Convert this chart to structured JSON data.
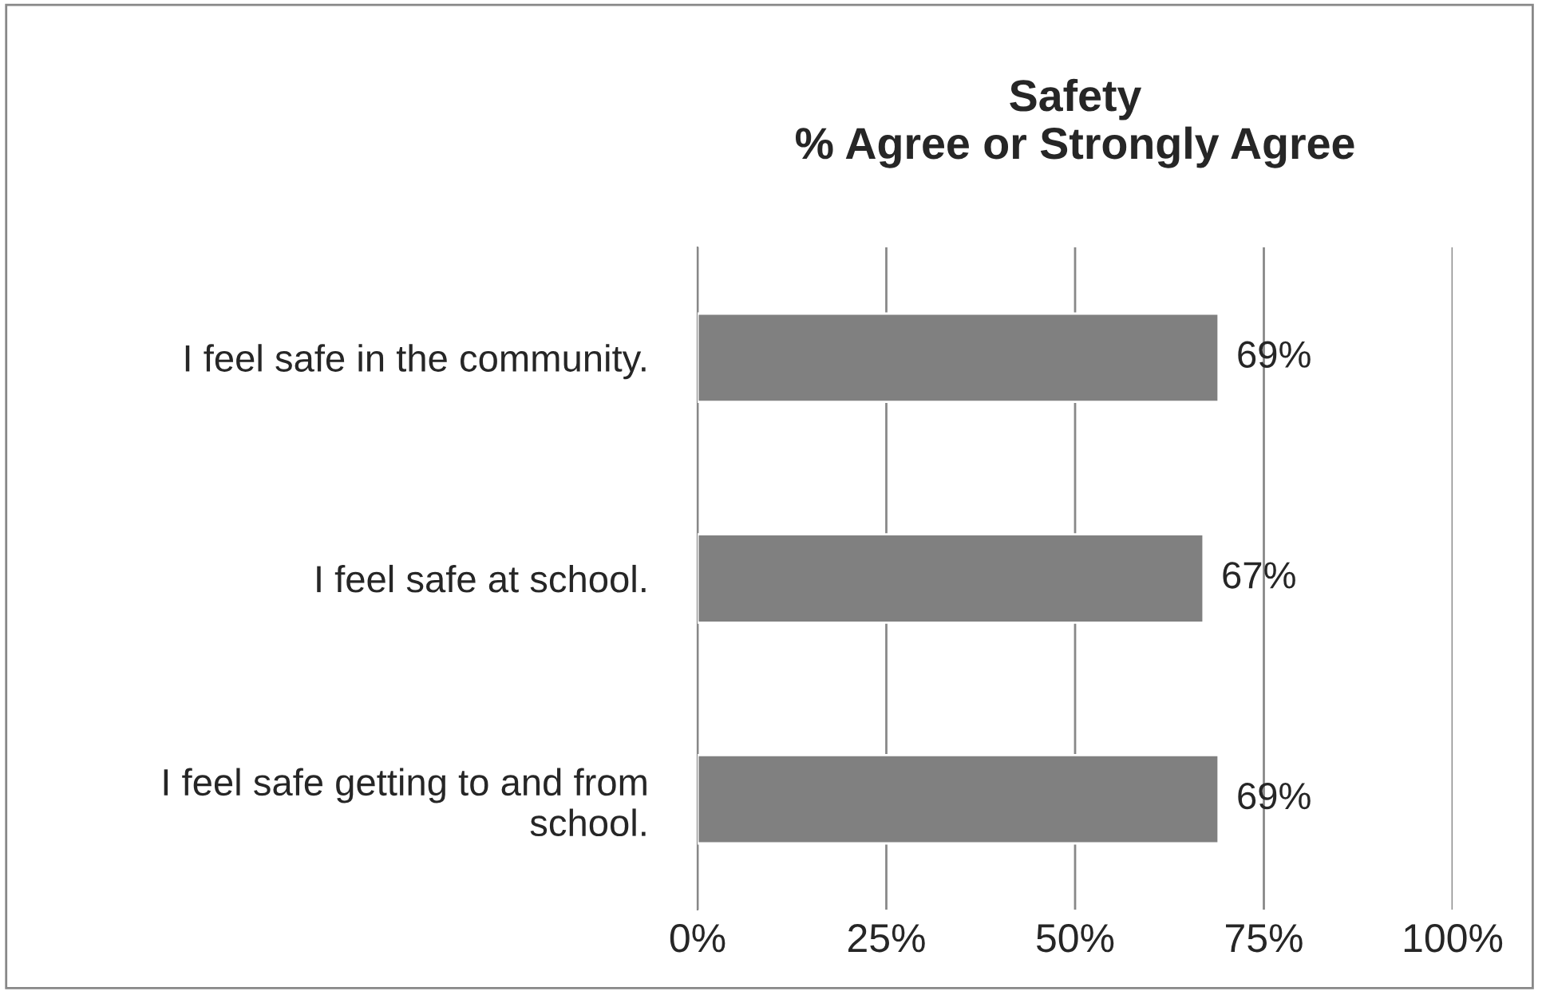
{
  "chart_data": {
    "type": "bar",
    "orientation": "horizontal",
    "title": "Safety\n% Agree or Strongly Agree",
    "categories": [
      "I feel safe in the community.",
      "I feel safe at school.",
      "I feel safe getting to and from school."
    ],
    "series": [
      {
        "color": "#808080",
        "values": [
          69,
          67,
          69
        ]
      }
    ],
    "value_labels": [
      "69%",
      "67%",
      "69%"
    ],
    "xlim": [
      0,
      100
    ],
    "xticks": [
      {
        "value": 0,
        "label": "0%"
      },
      {
        "value": 25,
        "label": "25%"
      },
      {
        "value": 50,
        "label": "50%"
      },
      {
        "value": 75,
        "label": "75%"
      },
      {
        "value": 100,
        "label": "100%"
      }
    ],
    "grid": "x",
    "legend": false
  }
}
